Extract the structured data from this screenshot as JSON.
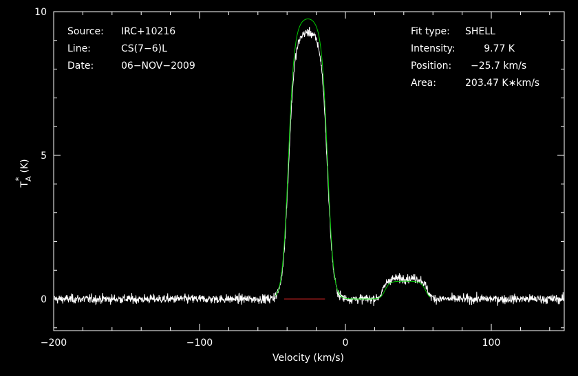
{
  "chart_data": {
    "type": "line",
    "xlabel": "Velocity (km/s)",
    "ylabel_main": "T",
    "ylabel_sub": "A",
    "ylabel_sup": "*",
    "ylabel_unit": "(K)",
    "xlim": [
      -200,
      150
    ],
    "ylim": [
      -1.1,
      10
    ],
    "x_ticks": [
      -200,
      -100,
      0,
      100
    ],
    "x_tick_labels": [
      "−200",
      "−100",
      "0",
      "100"
    ],
    "y_ticks": [
      0,
      5,
      10
    ],
    "y_tick_labels": [
      "0",
      "5",
      "10"
    ],
    "info_left": [
      {
        "key": "Source:",
        "value": "IRC+10216"
      },
      {
        "key": "Line:",
        "value": "CS(7−6)L"
      },
      {
        "key": "Date:",
        "value": "06−NOV−2009"
      }
    ],
    "info_right": [
      {
        "key": "Fit type:",
        "value": "SHELL"
      },
      {
        "key": "Intensity:",
        "value": "9.77 K"
      },
      {
        "key": "Position:",
        "value": "−25.7 km/s"
      },
      {
        "key": "Area:",
        "value": "203.47 K∗km/s"
      }
    ],
    "noise_rms": 0.13,
    "series": [
      {
        "kind": "spectrum",
        "color": "#ffffff",
        "features": [
          {
            "center": -25.7,
            "halfwidth": 13.5,
            "height": 9.3,
            "edge": 2.0,
            "horn": 0.3
          },
          {
            "center": 41,
            "halfwidth": 15,
            "height": 0.72,
            "edge": 1.5
          }
        ]
      },
      {
        "kind": "fit",
        "color": "#00cc00",
        "shell": {
          "center": -25.7,
          "peak": 9.77,
          "halfwidth": 13.6,
          "edge": 2.0
        },
        "bump": {
          "center": 41,
          "height": 0.62,
          "halfwidth": 14,
          "edge": 1.5
        },
        "range": [
          -48,
          58
        ]
      },
      {
        "kind": "baseline-window",
        "color": "#cc2222",
        "range": [
          -42,
          -14
        ]
      }
    ]
  }
}
